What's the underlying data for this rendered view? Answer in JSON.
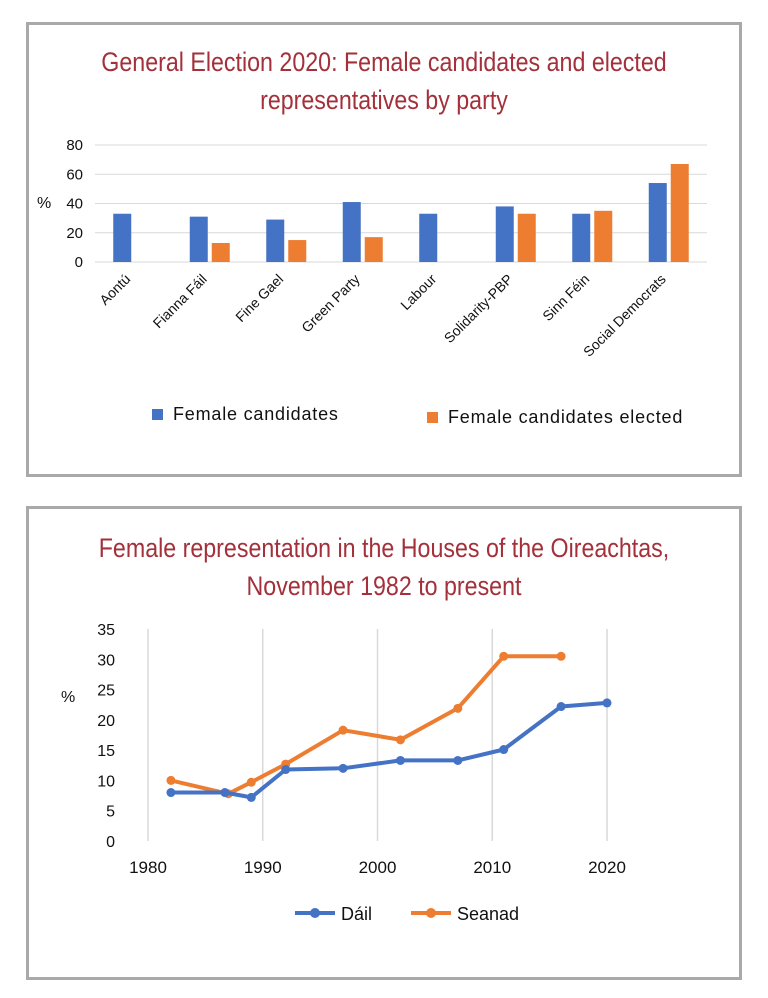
{
  "chart_data": [
    {
      "type": "bar",
      "title": "General Election 2020: Female candidates and elected representatives by party",
      "ylabel": "%",
      "ylim": [
        0,
        80
      ],
      "yticks": [
        0,
        20,
        40,
        60,
        80
      ],
      "grid": true,
      "legend_position": "bottom",
      "categories": [
        "Aontú",
        "Fianna Fáil",
        "Fine Gael",
        "Green Party",
        "Labour",
        "Solidarity-PBP",
        "Sinn Féin",
        "Social Democrats"
      ],
      "series": [
        {
          "name": "Female candidates",
          "color": "#4472c4",
          "values": [
            33,
            31,
            29,
            41,
            33,
            38,
            33,
            54
          ]
        },
        {
          "name": "Female candidates elected",
          "color": "#ed7d31",
          "values": [
            null,
            13,
            15,
            17,
            null,
            33,
            35,
            67
          ]
        }
      ]
    },
    {
      "type": "line",
      "title": "Female representation in the Houses of the Oireachtas, November 1982 to present",
      "ylabel": "%",
      "xlim": [
        1980,
        2020
      ],
      "xticks": [
        1980,
        1990,
        2000,
        2010,
        2020
      ],
      "ylim": [
        0,
        35
      ],
      "yticks": [
        0,
        5,
        10,
        15,
        20,
        25,
        30,
        35
      ],
      "grid": true,
      "legend_position": "bottom",
      "series": [
        {
          "name": "Dáil",
          "color": "#4472c4",
          "x": [
            1982,
            1986.7,
            1989,
            1992,
            1997,
            2002,
            2007,
            2011,
            2016,
            2020
          ],
          "y": [
            8,
            8,
            7.2,
            11.8,
            12,
            13.3,
            13.3,
            15.1,
            22.2,
            22.8
          ]
        },
        {
          "name": "Seanad",
          "color": "#ed7d31",
          "x": [
            1982,
            1987,
            1989,
            1992,
            1997,
            2002,
            2007,
            2011,
            2016
          ],
          "y": [
            10,
            7.8,
            9.7,
            12.7,
            18.3,
            16.7,
            21.9,
            30.5,
            30.5
          ]
        }
      ]
    }
  ]
}
